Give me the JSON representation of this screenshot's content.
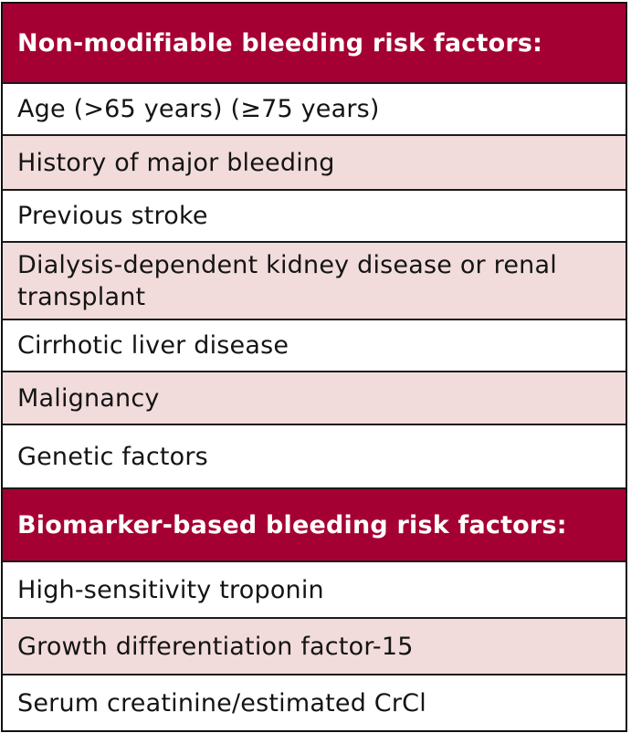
{
  "colors": {
    "header_bg": "#a50034",
    "header_text": "#ffffff",
    "band_pink": "#f2dcdb",
    "band_white": "#ffffff",
    "border": "#1a1a1a"
  },
  "sections": [
    {
      "heading": "Non-modifiable bleeding risk factors:",
      "items": [
        "Age (>65 years) (≥75 years)",
        "History of major bleeding",
        "Previous stroke",
        "Dialysis-dependent kidney disease or renal transplant",
        "Cirrhotic liver disease",
        "Malignancy",
        "Genetic factors"
      ]
    },
    {
      "heading": "Biomarker-based bleeding risk factors:",
      "items": [
        "High-sensitivity troponin",
        "Growth differentiation factor-15",
        "Serum creatinine/estimated CrCl"
      ]
    }
  ]
}
